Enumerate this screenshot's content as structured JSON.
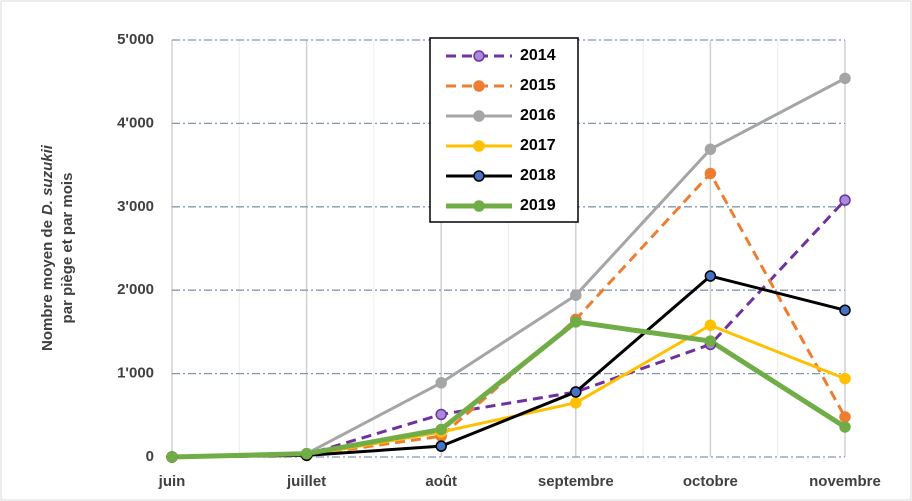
{
  "chart_data": {
    "type": "line",
    "y_label": {
      "line1": [
        "Nombre moyen de",
        "D. suzukii"
      ],
      "line2": "par piège et par mois"
    },
    "categories": [
      "juin",
      "juillet",
      "août",
      "septembre",
      "octobre",
      "novembre"
    ],
    "ylim": [
      0,
      5000
    ],
    "yticks": [
      0,
      {
        "value": 1000,
        "label": "1'000"
      },
      {
        "value": 2000,
        "label": "2'000"
      },
      {
        "value": 3000,
        "label": "3'000"
      },
      {
        "value": 4000,
        "label": "4'000"
      },
      {
        "value": 5000,
        "label": "5'000"
      }
    ],
    "grid": true,
    "legend": "top",
    "series": [
      {
        "name": "2014",
        "color": "#7030a0",
        "marker_color": "#a58bd8",
        "dash": true,
        "linewidth": 3,
        "values": [
          0,
          30,
          510,
          780,
          1350,
          3080
        ]
      },
      {
        "name": "2015",
        "color": "#ed7d31",
        "marker_color": "#ed7d31",
        "dash": true,
        "linewidth": 3,
        "values": [
          0,
          20,
          250,
          1650,
          3400,
          480
        ]
      },
      {
        "name": "2016",
        "color": "#a5a5a5",
        "marker_color": "#a5a5a5",
        "dash": false,
        "linewidth": 3,
        "values": [
          0,
          40,
          890,
          1940,
          3690,
          4540
        ]
      },
      {
        "name": "2017",
        "color": "#ffc000",
        "marker_color": "#ffc000",
        "dash": false,
        "linewidth": 3,
        "values": [
          0,
          20,
          300,
          650,
          1580,
          940
        ]
      },
      {
        "name": "2018",
        "color": "#000000",
        "marker_color": "#4472c4",
        "dash": false,
        "linewidth": 3,
        "values": [
          0,
          20,
          130,
          780,
          2170,
          1760
        ]
      },
      {
        "name": "2019",
        "color": "#70ad47",
        "marker_color": "#70ad47",
        "dash": false,
        "linewidth": 5,
        "values": [
          0,
          40,
          330,
          1620,
          1390,
          360
        ]
      }
    ]
  }
}
